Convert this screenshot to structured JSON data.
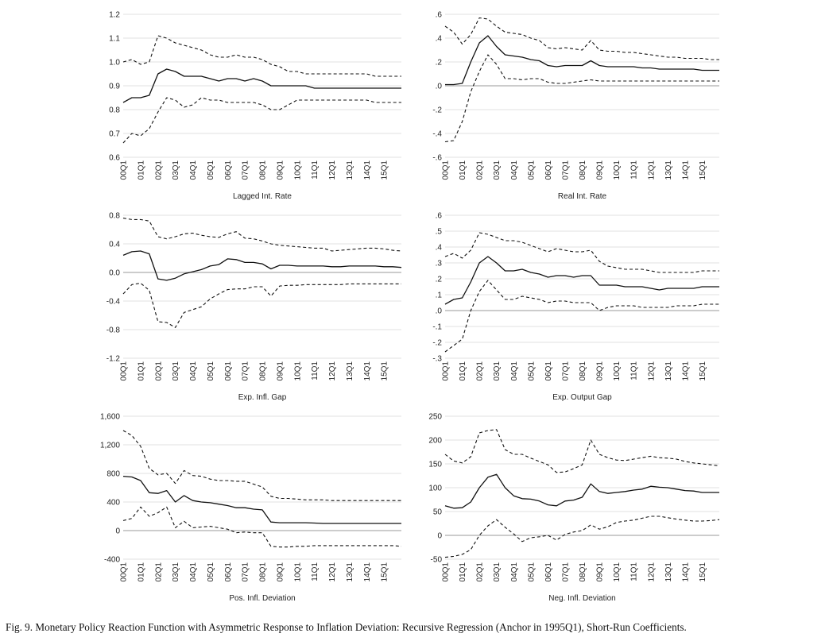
{
  "caption": "Fig. 9. Monetary Policy Reaction Function with Asymmetric Response to Inflation Deviation: Recursive Regression (Anchor in 1995Q1), Short-Run Coefficients.",
  "x_ticks": [
    "00Q1",
    "01Q1",
    "02Q1",
    "03Q1",
    "04Q1",
    "05Q1",
    "06Q1",
    "07Q1",
    "08Q1",
    "09Q1",
    "10Q1",
    "11Q1",
    "12Q1",
    "13Q1",
    "14Q1",
    "15Q1"
  ],
  "chart_data": [
    {
      "type": "line",
      "xlabel": "Lagged Int. Rate",
      "ylim": [
        0.6,
        1.2
      ],
      "y_ticks": [
        0.6,
        0.7,
        0.8,
        0.9,
        1.0,
        1.1,
        1.2
      ],
      "y_tick_labels": [
        "0.6",
        "0.7",
        "0.8",
        "0.9",
        "1.0",
        "1.1",
        "1.2"
      ],
      "x": [
        "2000Q1",
        "2000Q3",
        "2001Q1",
        "2001Q3",
        "2002Q1",
        "2002Q3",
        "2003Q1",
        "2003Q3",
        "2004Q1",
        "2004Q3",
        "2005Q1",
        "2005Q3",
        "2006Q1",
        "2006Q3",
        "2007Q1",
        "2007Q3",
        "2008Q1",
        "2008Q3",
        "2009Q1",
        "2009Q3",
        "2010Q1",
        "2010Q3",
        "2011Q1",
        "2011Q3",
        "2012Q1",
        "2012Q3",
        "2013Q1",
        "2013Q3",
        "2014Q1",
        "2014Q3",
        "2015Q1",
        "2015Q3",
        "2016Q1"
      ],
      "series": [
        {
          "values": [
            0.83,
            0.85,
            0.85,
            0.86,
            0.95,
            0.97,
            0.96,
            0.94,
            0.94,
            0.94,
            0.93,
            0.92,
            0.93,
            0.93,
            0.92,
            0.93,
            0.92,
            0.9,
            0.9,
            0.9,
            0.9,
            0.9,
            0.89,
            0.89,
            0.89,
            0.89,
            0.89,
            0.89,
            0.89,
            0.89,
            0.89,
            0.89,
            0.89
          ]
        },
        {
          "values": [
            0.66,
            0.7,
            0.69,
            0.72,
            0.79,
            0.85,
            0.84,
            0.81,
            0.82,
            0.85,
            0.84,
            0.84,
            0.83,
            0.83,
            0.83,
            0.83,
            0.82,
            0.8,
            0.8,
            0.82,
            0.84,
            0.84,
            0.84,
            0.84,
            0.84,
            0.84,
            0.84,
            0.84,
            0.84,
            0.83,
            0.83,
            0.83,
            0.83
          ]
        },
        {
          "values": [
            1.0,
            1.01,
            0.99,
            1.0,
            1.11,
            1.1,
            1.08,
            1.07,
            1.06,
            1.05,
            1.03,
            1.02,
            1.02,
            1.03,
            1.02,
            1.02,
            1.01,
            0.99,
            0.98,
            0.96,
            0.96,
            0.95,
            0.95,
            0.95,
            0.95,
            0.95,
            0.95,
            0.95,
            0.95,
            0.94,
            0.94,
            0.94,
            0.94
          ]
        }
      ]
    },
    {
      "type": "line",
      "xlabel": "Real Int. Rate",
      "ylim": [
        -0.6,
        0.6
      ],
      "y_ticks": [
        -0.6,
        -0.4,
        -0.2,
        0.0,
        0.2,
        0.4,
        0.6
      ],
      "y_tick_labels": [
        "-.6",
        "-.4",
        "-.2",
        ".0",
        ".2",
        ".4",
        ".6"
      ],
      "x": [
        "2000Q1",
        "2000Q3",
        "2001Q1",
        "2001Q3",
        "2002Q1",
        "2002Q3",
        "2003Q1",
        "2003Q3",
        "2004Q1",
        "2004Q3",
        "2005Q1",
        "2005Q3",
        "2006Q1",
        "2006Q3",
        "2007Q1",
        "2007Q3",
        "2008Q1",
        "2008Q3",
        "2009Q1",
        "2009Q3",
        "2010Q1",
        "2010Q3",
        "2011Q1",
        "2011Q3",
        "2012Q1",
        "2012Q3",
        "2013Q1",
        "2013Q3",
        "2014Q1",
        "2014Q3",
        "2015Q1",
        "2015Q3",
        "2016Q1"
      ],
      "series": [
        {
          "values": [
            0.01,
            0.01,
            0.02,
            0.2,
            0.36,
            0.42,
            0.33,
            0.26,
            0.25,
            0.24,
            0.22,
            0.21,
            0.17,
            0.16,
            0.17,
            0.17,
            0.17,
            0.21,
            0.17,
            0.16,
            0.16,
            0.16,
            0.16,
            0.15,
            0.15,
            0.14,
            0.14,
            0.14,
            0.14,
            0.14,
            0.13,
            0.13,
            0.13
          ]
        },
        {
          "values": [
            -0.47,
            -0.46,
            -0.3,
            -0.05,
            0.12,
            0.26,
            0.18,
            0.06,
            0.06,
            0.05,
            0.06,
            0.06,
            0.03,
            0.02,
            0.02,
            0.03,
            0.04,
            0.05,
            0.04,
            0.04,
            0.04,
            0.04,
            0.04,
            0.04,
            0.04,
            0.04,
            0.04,
            0.04,
            0.04,
            0.04,
            0.04,
            0.04,
            0.04
          ]
        },
        {
          "values": [
            0.5,
            0.45,
            0.35,
            0.43,
            0.57,
            0.56,
            0.5,
            0.45,
            0.44,
            0.43,
            0.4,
            0.38,
            0.32,
            0.31,
            0.32,
            0.31,
            0.3,
            0.38,
            0.3,
            0.29,
            0.29,
            0.28,
            0.28,
            0.27,
            0.26,
            0.25,
            0.24,
            0.24,
            0.23,
            0.23,
            0.23,
            0.22,
            0.22
          ]
        }
      ]
    },
    {
      "type": "line",
      "xlabel": "Exp. Infl. Gap",
      "ylim": [
        -1.2,
        0.8
      ],
      "y_ticks": [
        -1.2,
        -0.8,
        -0.4,
        0.0,
        0.4,
        0.8
      ],
      "y_tick_labels": [
        "-1.2",
        "-0.8",
        "-0.4",
        "0.0",
        "0.4",
        "0.8"
      ],
      "x": [
        "2000Q1",
        "2000Q3",
        "2001Q1",
        "2001Q3",
        "2002Q1",
        "2002Q3",
        "2003Q1",
        "2003Q3",
        "2004Q1",
        "2004Q3",
        "2005Q1",
        "2005Q3",
        "2006Q1",
        "2006Q3",
        "2007Q1",
        "2007Q3",
        "2008Q1",
        "2008Q3",
        "2009Q1",
        "2009Q3",
        "2010Q1",
        "2010Q3",
        "2011Q1",
        "2011Q3",
        "2012Q1",
        "2012Q3",
        "2013Q1",
        "2013Q3",
        "2014Q1",
        "2014Q3",
        "2015Q1",
        "2015Q3",
        "2016Q1"
      ],
      "series": [
        {
          "values": [
            0.24,
            0.29,
            0.3,
            0.26,
            -0.09,
            -0.11,
            -0.08,
            -0.02,
            0.01,
            0.04,
            0.09,
            0.11,
            0.19,
            0.18,
            0.14,
            0.14,
            0.12,
            0.05,
            0.1,
            0.1,
            0.09,
            0.09,
            0.09,
            0.09,
            0.08,
            0.08,
            0.09,
            0.09,
            0.09,
            0.09,
            0.08,
            0.08,
            0.07
          ]
        },
        {
          "values": [
            -0.3,
            -0.17,
            -0.15,
            -0.25,
            -0.69,
            -0.7,
            -0.77,
            -0.56,
            -0.52,
            -0.48,
            -0.37,
            -0.3,
            -0.24,
            -0.23,
            -0.23,
            -0.2,
            -0.2,
            -0.33,
            -0.19,
            -0.18,
            -0.18,
            -0.17,
            -0.17,
            -0.17,
            -0.17,
            -0.17,
            -0.16,
            -0.16,
            -0.16,
            -0.16,
            -0.16,
            -0.16,
            -0.16
          ]
        },
        {
          "values": [
            0.76,
            0.74,
            0.74,
            0.72,
            0.5,
            0.47,
            0.5,
            0.54,
            0.55,
            0.52,
            0.5,
            0.49,
            0.54,
            0.57,
            0.48,
            0.47,
            0.44,
            0.4,
            0.38,
            0.37,
            0.36,
            0.35,
            0.34,
            0.34,
            0.3,
            0.31,
            0.32,
            0.33,
            0.34,
            0.34,
            0.33,
            0.31,
            0.3
          ]
        }
      ]
    },
    {
      "type": "line",
      "xlabel": "Exp. Output Gap",
      "ylim": [
        -0.3,
        0.6
      ],
      "y_ticks": [
        -0.3,
        -0.2,
        -0.1,
        0.0,
        0.1,
        0.2,
        0.3,
        0.4,
        0.5,
        0.6
      ],
      "y_tick_labels": [
        "-.3",
        "-.2",
        "-.1",
        ".0",
        ".1",
        ".2",
        ".3",
        ".4",
        ".5",
        ".6"
      ],
      "x": [
        "2000Q1",
        "2000Q3",
        "2001Q1",
        "2001Q3",
        "2002Q1",
        "2002Q3",
        "2003Q1",
        "2003Q3",
        "2004Q1",
        "2004Q3",
        "2005Q1",
        "2005Q3",
        "2006Q1",
        "2006Q3",
        "2007Q1",
        "2007Q3",
        "2008Q1",
        "2008Q3",
        "2009Q1",
        "2009Q3",
        "2010Q1",
        "2010Q3",
        "2011Q1",
        "2011Q3",
        "2012Q1",
        "2012Q3",
        "2013Q1",
        "2013Q3",
        "2014Q1",
        "2014Q3",
        "2015Q1",
        "2015Q3",
        "2016Q1"
      ],
      "series": [
        {
          "values": [
            0.04,
            0.07,
            0.08,
            0.18,
            0.3,
            0.34,
            0.3,
            0.25,
            0.25,
            0.26,
            0.24,
            0.23,
            0.21,
            0.22,
            0.22,
            0.21,
            0.22,
            0.22,
            0.16,
            0.16,
            0.16,
            0.15,
            0.15,
            0.15,
            0.14,
            0.13,
            0.14,
            0.14,
            0.14,
            0.14,
            0.15,
            0.15,
            0.15
          ]
        },
        {
          "values": [
            -0.26,
            -0.22,
            -0.18,
            0.0,
            0.12,
            0.19,
            0.13,
            0.07,
            0.07,
            0.09,
            0.08,
            0.07,
            0.05,
            0.06,
            0.06,
            0.05,
            0.05,
            0.05,
            0.0,
            0.02,
            0.03,
            0.03,
            0.03,
            0.02,
            0.02,
            0.02,
            0.02,
            0.03,
            0.03,
            0.03,
            0.04,
            0.04,
            0.04
          ]
        },
        {
          "values": [
            0.34,
            0.36,
            0.33,
            0.38,
            0.49,
            0.48,
            0.46,
            0.44,
            0.44,
            0.43,
            0.41,
            0.39,
            0.37,
            0.39,
            0.38,
            0.37,
            0.37,
            0.38,
            0.31,
            0.28,
            0.27,
            0.26,
            0.26,
            0.26,
            0.25,
            0.24,
            0.24,
            0.24,
            0.24,
            0.24,
            0.25,
            0.25,
            0.25
          ]
        }
      ]
    },
    {
      "type": "line",
      "xlabel": "Pos. Infl. Deviation",
      "ylim": [
        -400,
        1600
      ],
      "y_ticks": [
        -400,
        0,
        400,
        800,
        1200,
        1600
      ],
      "y_tick_labels": [
        "-400",
        "0",
        "400",
        "800",
        "1,200",
        "1,600"
      ],
      "x": [
        "2000Q1",
        "2000Q3",
        "2001Q1",
        "2001Q3",
        "2002Q1",
        "2002Q3",
        "2003Q1",
        "2003Q3",
        "2004Q1",
        "2004Q3",
        "2005Q1",
        "2005Q3",
        "2006Q1",
        "2006Q3",
        "2007Q1",
        "2007Q3",
        "2008Q1",
        "2008Q3",
        "2009Q1",
        "2009Q3",
        "2010Q1",
        "2010Q3",
        "2011Q1",
        "2011Q3",
        "2012Q1",
        "2012Q3",
        "2013Q1",
        "2013Q3",
        "2014Q1",
        "2014Q3",
        "2015Q1",
        "2015Q3",
        "2016Q1"
      ],
      "series": [
        {
          "values": [
            760,
            750,
            700,
            530,
            520,
            560,
            400,
            490,
            420,
            400,
            390,
            370,
            350,
            320,
            320,
            300,
            290,
            120,
            110,
            110,
            110,
            110,
            105,
            100,
            100,
            100,
            100,
            100,
            100,
            100,
            100,
            100,
            100
          ]
        },
        {
          "values": [
            140,
            170,
            330,
            200,
            250,
            330,
            40,
            130,
            40,
            50,
            60,
            40,
            20,
            -30,
            -20,
            -30,
            -30,
            -220,
            -230,
            -230,
            -220,
            -220,
            -210,
            -210,
            -210,
            -210,
            -210,
            -210,
            -210,
            -210,
            -210,
            -210,
            -220
          ]
        },
        {
          "values": [
            1400,
            1330,
            1180,
            870,
            780,
            800,
            660,
            840,
            770,
            760,
            720,
            700,
            700,
            690,
            690,
            650,
            610,
            480,
            450,
            450,
            440,
            430,
            430,
            430,
            420,
            420,
            420,
            420,
            420,
            420,
            420,
            420,
            420
          ]
        }
      ]
    },
    {
      "type": "line",
      "xlabel": "Neg. Infl. Deviation",
      "ylim": [
        -50,
        250
      ],
      "y_ticks": [
        -50,
        0,
        50,
        100,
        150,
        200,
        250
      ],
      "y_tick_labels": [
        "-50",
        "0",
        "50",
        "100",
        "150",
        "200",
        "250"
      ],
      "x": [
        "2000Q1",
        "2000Q3",
        "2001Q1",
        "2001Q3",
        "2002Q1",
        "2002Q3",
        "2003Q1",
        "2003Q3",
        "2004Q1",
        "2004Q3",
        "2005Q1",
        "2005Q3",
        "2006Q1",
        "2006Q3",
        "2007Q1",
        "2007Q3",
        "2008Q1",
        "2008Q3",
        "2009Q1",
        "2009Q3",
        "2010Q1",
        "2010Q3",
        "2011Q1",
        "2011Q3",
        "2012Q1",
        "2012Q3",
        "2013Q1",
        "2013Q3",
        "2014Q1",
        "2014Q3",
        "2015Q1",
        "2015Q3",
        "2016Q1"
      ],
      "series": [
        {
          "values": [
            62,
            57,
            58,
            70,
            100,
            122,
            128,
            100,
            83,
            77,
            76,
            72,
            64,
            62,
            72,
            74,
            80,
            108,
            92,
            88,
            90,
            92,
            95,
            97,
            103,
            101,
            100,
            97,
            94,
            93,
            90,
            90,
            90
          ]
        },
        {
          "values": [
            -46,
            -44,
            -40,
            -30,
            0,
            20,
            33,
            17,
            3,
            -13,
            -5,
            -3,
            0,
            -10,
            2,
            7,
            10,
            22,
            13,
            18,
            27,
            30,
            32,
            36,
            40,
            40,
            37,
            34,
            32,
            30,
            30,
            31,
            33
          ]
        },
        {
          "values": [
            170,
            156,
            152,
            165,
            215,
            220,
            222,
            180,
            170,
            170,
            162,
            155,
            148,
            132,
            133,
            140,
            148,
            200,
            170,
            163,
            158,
            157,
            160,
            163,
            166,
            163,
            162,
            160,
            155,
            152,
            150,
            148,
            146
          ]
        }
      ]
    }
  ]
}
